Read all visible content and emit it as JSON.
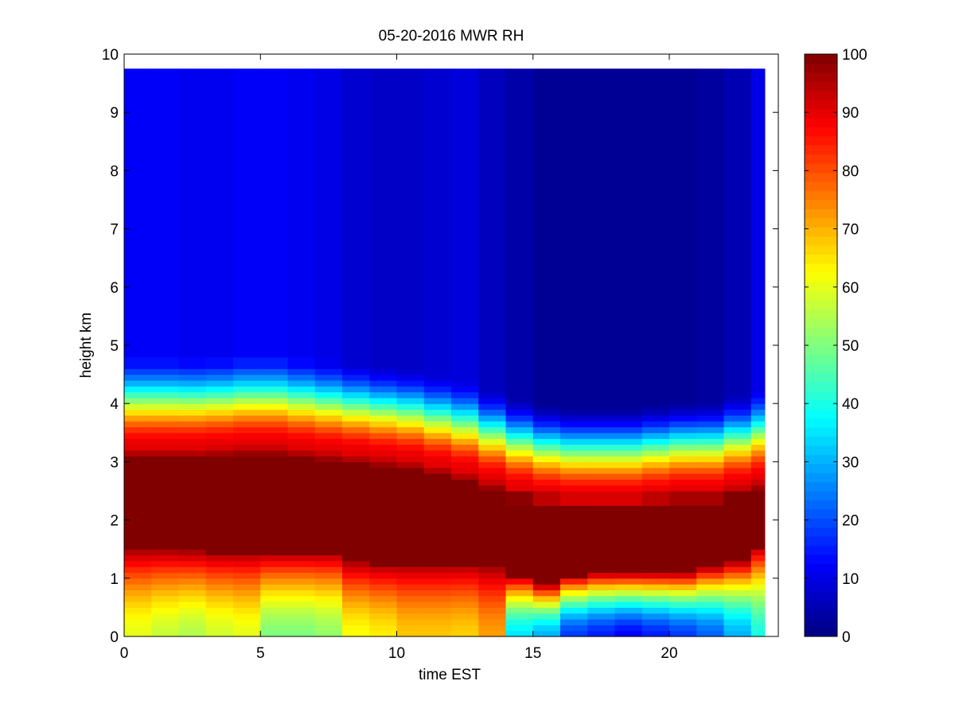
{
  "chart_data": {
    "type": "heatmap",
    "title": "05-20-2016 MWR RH",
    "xlabel": "time EST",
    "ylabel": "height km",
    "xlim": [
      0,
      24
    ],
    "ylim": [
      0,
      10
    ],
    "x_ticks": [
      "0",
      "5",
      "10",
      "15",
      "20"
    ],
    "y_ticks": [
      "0",
      "1",
      "2",
      "3",
      "4",
      "5",
      "6",
      "7",
      "8",
      "9",
      "10"
    ],
    "colorbar": {
      "colormap": "jet",
      "range": [
        0,
        100
      ],
      "ticks": [
        "0",
        "10",
        "20",
        "30",
        "40",
        "50",
        "60",
        "70",
        "80",
        "90",
        "100"
      ]
    },
    "grid": false,
    "data_extent": {
      "time_start": 0,
      "time_end": 23.5,
      "height_start": 0,
      "height_end": 9.75
    },
    "time_step": 1,
    "height_levels_km": [
      0.0,
      0.1,
      0.2,
      0.3,
      0.4,
      0.5,
      0.6,
      0.7,
      0.8,
      0.9,
      1.0,
      1.1,
      1.2,
      1.3,
      1.4,
      1.5,
      1.6,
      1.75,
      2.0,
      2.25,
      2.5,
      2.6,
      2.7,
      2.8,
      2.9,
      3.0,
      3.1,
      3.2,
      3.3,
      3.4,
      3.5,
      3.6,
      3.7,
      3.8,
      3.9,
      4.0,
      4.1,
      4.2,
      4.3,
      4.4,
      4.5,
      4.6,
      4.8,
      5.0,
      5.25,
      5.5,
      6.0,
      6.5,
      7.0,
      7.5,
      8.0,
      8.5,
      9.0,
      9.5
    ],
    "profiles": [
      {
        "time": 0,
        "surface_rh": 60,
        "lower_edge_km": 1.5,
        "upper_edge_km": 3.05,
        "upper_rh": 12
      },
      {
        "time": 1,
        "surface_rh": 57,
        "lower_edge_km": 1.5,
        "upper_edge_km": 3.05,
        "upper_rh": 12
      },
      {
        "time": 2,
        "surface_rh": 55,
        "lower_edge_km": 1.48,
        "upper_edge_km": 3.05,
        "upper_rh": 11
      },
      {
        "time": 3,
        "surface_rh": 58,
        "lower_edge_km": 1.45,
        "upper_edge_km": 3.07,
        "upper_rh": 11
      },
      {
        "time": 4,
        "surface_rh": 60,
        "lower_edge_km": 1.45,
        "upper_edge_km": 3.1,
        "upper_rh": 12
      },
      {
        "time": 5,
        "surface_rh": 50,
        "lower_edge_km": 1.45,
        "upper_edge_km": 3.1,
        "upper_rh": 12
      },
      {
        "time": 6,
        "surface_rh": 50,
        "lower_edge_km": 1.45,
        "upper_edge_km": 3.05,
        "upper_rh": 11
      },
      {
        "time": 7,
        "surface_rh": 52,
        "lower_edge_km": 1.45,
        "upper_edge_km": 3.0,
        "upper_rh": 10
      },
      {
        "time": 8,
        "surface_rh": 62,
        "lower_edge_km": 1.3,
        "upper_edge_km": 2.95,
        "upper_rh": 8
      },
      {
        "time": 9,
        "surface_rh": 64,
        "lower_edge_km": 1.25,
        "upper_edge_km": 2.9,
        "upper_rh": 7
      },
      {
        "time": 10,
        "surface_rh": 68,
        "lower_edge_km": 1.25,
        "upper_edge_km": 2.85,
        "upper_rh": 7
      },
      {
        "time": 11,
        "surface_rh": 68,
        "lower_edge_km": 1.25,
        "upper_edge_km": 2.75,
        "upper_rh": 8
      },
      {
        "time": 12,
        "surface_rh": 67,
        "lower_edge_km": 1.25,
        "upper_edge_km": 2.65,
        "upper_rh": 9
      },
      {
        "time": 13,
        "surface_rh": 72,
        "lower_edge_km": 1.2,
        "upper_edge_km": 2.5,
        "upper_rh": 6
      },
      {
        "time": 14,
        "surface_rh": 35,
        "lower_edge_km": 1.05,
        "upper_edge_km": 2.35,
        "upper_rh": 4
      },
      {
        "time": 15,
        "surface_rh": 30,
        "lower_edge_km": 0.9,
        "upper_edge_km": 2.25,
        "upper_rh": 2
      },
      {
        "time": 16,
        "surface_rh": 18,
        "lower_edge_km": 1.05,
        "upper_edge_km": 2.2,
        "upper_rh": 2
      },
      {
        "time": 17,
        "surface_rh": 15,
        "lower_edge_km": 1.1,
        "upper_edge_km": 2.2,
        "upper_rh": 2
      },
      {
        "time": 18,
        "surface_rh": 12,
        "lower_edge_km": 1.1,
        "upper_edge_km": 2.2,
        "upper_rh": 2
      },
      {
        "time": 19,
        "surface_rh": 15,
        "lower_edge_km": 1.1,
        "upper_edge_km": 2.25,
        "upper_rh": 2
      },
      {
        "time": 20,
        "surface_rh": 18,
        "lower_edge_km": 1.1,
        "upper_edge_km": 2.3,
        "upper_rh": 2
      },
      {
        "time": 21,
        "surface_rh": 22,
        "lower_edge_km": 1.2,
        "upper_edge_km": 2.3,
        "upper_rh": 3
      },
      {
        "time": 22,
        "surface_rh": 30,
        "lower_edge_km": 1.3,
        "upper_edge_km": 2.4,
        "upper_rh": 5
      },
      {
        "time": 23,
        "surface_rh": 40,
        "lower_edge_km": 1.55,
        "upper_edge_km": 2.5,
        "upper_rh": 10
      }
    ]
  }
}
